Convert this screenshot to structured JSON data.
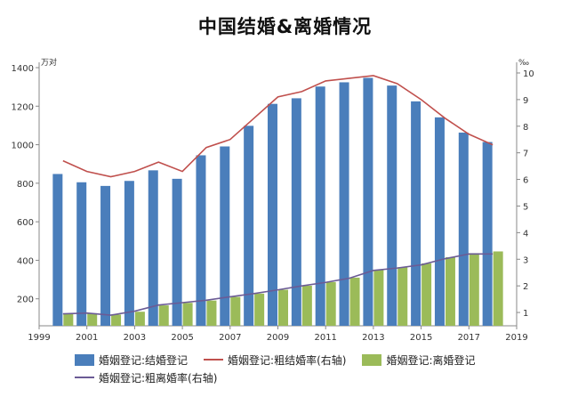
{
  "chart_data": {
    "type": "bar",
    "title": "中国结婚&离婚情况",
    "left_axis_unit": "万对",
    "right_axis_unit": "‰",
    "x": [
      2000,
      2001,
      2002,
      2003,
      2004,
      2005,
      2006,
      2007,
      2008,
      2009,
      2010,
      2011,
      2012,
      2013,
      2014,
      2015,
      2016,
      2017,
      2018
    ],
    "xlim": [
      1999,
      2019
    ],
    "x_ticks": [
      "1999",
      "2001",
      "2003",
      "2005",
      "2007",
      "2009",
      "2011",
      "2013",
      "2015",
      "2017",
      "2019"
    ],
    "ylim_left": [
      60,
      1400
    ],
    "y_ticks_left": [
      "200",
      "400",
      "600",
      "800",
      "1000",
      "1200",
      "1400"
    ],
    "ylim_right": [
      0.5,
      10.2
    ],
    "y_ticks_right": [
      "1",
      "2",
      "3",
      "4",
      "5",
      "6",
      "7",
      "8",
      "9",
      "10"
    ],
    "grid": false,
    "legend_position": "bottom",
    "series": [
      {
        "name": "婚姻登记:结婚登记",
        "kind": "bar",
        "axis": "left",
        "color": "#4a7ebb",
        "values": [
          848,
          805,
          786,
          812,
          867,
          823,
          945,
          991,
          1098,
          1212,
          1241,
          1302,
          1324,
          1347,
          1307,
          1225,
          1142,
          1063,
          1014
        ]
      },
      {
        "name": "婚姻登记:离婚登记",
        "kind": "bar",
        "axis": "left",
        "color": "#9bbb59",
        "values": [
          121,
          125,
          118,
          133,
          166,
          179,
          191,
          210,
          227,
          247,
          268,
          287,
          310,
          350,
          364,
          384,
          416,
          437,
          446
        ]
      },
      {
        "name": "婚姻登记:粗结婚率(右轴)",
        "kind": "line",
        "axis": "right",
        "color": "#c0504d",
        "values": [
          6.7,
          6.3,
          6.1,
          6.3,
          6.65,
          6.3,
          7.2,
          7.5,
          8.3,
          9.1,
          9.3,
          9.7,
          9.8,
          9.9,
          9.6,
          9.0,
          8.3,
          7.7,
          7.3
        ]
      },
      {
        "name": "婚姻登记:粗离婚率(右轴)",
        "kind": "line",
        "axis": "right",
        "color": "#6b5b95",
        "values": [
          0.95,
          0.98,
          0.9,
          1.05,
          1.28,
          1.37,
          1.46,
          1.59,
          1.71,
          1.85,
          2.0,
          2.13,
          2.29,
          2.58,
          2.67,
          2.79,
          3.02,
          3.2,
          3.2
        ]
      }
    ]
  }
}
